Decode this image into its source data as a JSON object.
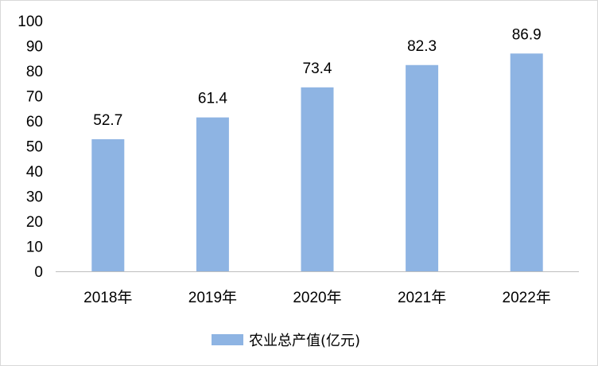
{
  "chart_data": {
    "type": "bar",
    "categories": [
      "2018年",
      "2019年",
      "2020年",
      "2021年",
      "2022年"
    ],
    "series": [
      {
        "name": "农业总产值(亿元)",
        "values": [
          52.7,
          61.4,
          73.4,
          82.3,
          86.9
        ]
      }
    ],
    "ylim": [
      0,
      100
    ],
    "yticks": [
      0,
      10,
      20,
      30,
      40,
      50,
      60,
      70,
      80,
      90,
      100
    ],
    "grid": false,
    "legend": "bottom",
    "data_labels": true,
    "colors": {
      "bar": "#8eb4e3",
      "axis": "#bfbfbf",
      "text": "#000000"
    }
  }
}
